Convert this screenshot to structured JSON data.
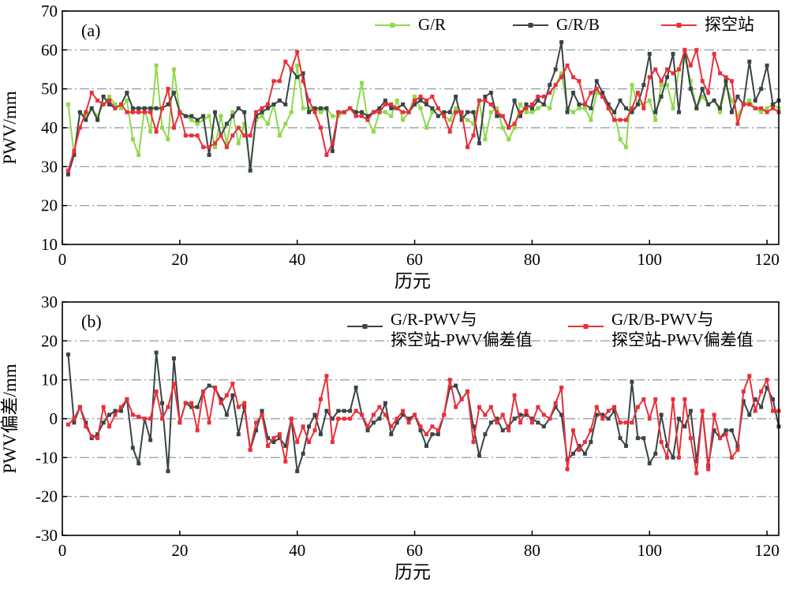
{
  "chart_data": [
    {
      "panel_label": "(a)",
      "type": "line",
      "xlabel": "历元",
      "ylabel": "PWV/mm",
      "xlim": [
        0,
        122
      ],
      "ylim": [
        10,
        70
      ],
      "xticks": [
        0,
        20,
        40,
        60,
        80,
        100,
        120
      ],
      "yticks": [
        10,
        20,
        30,
        40,
        50,
        60,
        70
      ],
      "grid": "horizontal dash-dot",
      "legend_position": "top-right",
      "x": [
        1,
        2,
        3,
        4,
        5,
        6,
        7,
        8,
        9,
        10,
        11,
        12,
        13,
        14,
        15,
        16,
        17,
        18,
        19,
        20,
        21,
        22,
        23,
        24,
        25,
        26,
        27,
        28,
        29,
        30,
        31,
        32,
        33,
        34,
        35,
        36,
        37,
        38,
        39,
        40,
        41,
        42,
        43,
        44,
        45,
        46,
        47,
        48,
        49,
        50,
        51,
        52,
        53,
        54,
        55,
        56,
        57,
        58,
        59,
        60,
        61,
        62,
        63,
        64,
        65,
        66,
        67,
        68,
        69,
        70,
        71,
        72,
        73,
        74,
        75,
        76,
        77,
        78,
        79,
        80,
        81,
        82,
        83,
        84,
        85,
        86,
        87,
        88,
        89,
        90,
        91,
        92,
        93,
        94,
        95,
        96,
        97,
        98,
        99,
        100,
        101,
        102,
        103,
        104,
        105,
        106,
        107,
        108,
        109,
        110,
        111,
        112,
        113,
        114,
        115,
        116,
        117,
        118,
        119,
        120,
        121,
        122
      ],
      "series": [
        {
          "name": "G/R",
          "color": "#8fd94a",
          "marker": "square",
          "values": [
            46,
            33,
            44,
            43,
            45,
            43,
            46,
            48,
            46,
            45,
            47,
            37,
            33,
            45,
            39,
            56,
            40,
            37,
            55,
            44,
            43,
            42,
            41,
            42,
            43,
            35,
            43,
            36,
            44,
            36,
            41,
            30,
            42,
            43,
            41,
            46,
            38,
            41,
            44,
            56,
            45,
            45,
            45,
            44,
            45,
            43,
            43,
            44,
            45,
            44,
            51.5,
            42,
            39,
            44,
            44,
            43,
            47,
            42,
            44,
            48,
            45,
            40,
            44,
            45,
            43,
            42,
            45,
            43,
            42,
            41,
            47,
            37,
            44,
            45,
            40,
            37,
            40,
            46,
            44,
            44,
            45,
            46,
            45,
            51,
            54,
            45,
            44,
            45,
            45,
            42,
            49,
            48,
            45,
            44,
            37,
            35,
            51,
            46,
            46,
            47,
            42,
            51,
            51,
            45,
            55,
            58,
            52,
            45,
            48,
            46,
            47,
            44,
            51,
            47,
            43,
            46,
            47,
            45,
            44,
            45,
            46,
            45
          ]
        },
        {
          "name": "G/R/B",
          "color": "#3a4447",
          "marker": "square",
          "values": [
            28,
            33,
            44,
            42,
            45,
            42,
            48,
            46,
            45,
            46,
            49,
            45,
            45,
            45,
            45,
            45,
            45,
            46,
            49,
            44,
            43,
            43,
            42,
            43,
            33,
            44,
            38,
            41,
            43,
            45,
            44,
            29,
            43,
            44,
            45,
            46,
            47,
            46,
            55,
            53,
            54,
            44,
            45,
            45,
            45,
            34,
            44,
            44,
            45,
            44,
            44,
            43,
            44,
            45,
            47,
            45,
            45,
            46,
            44,
            46,
            47,
            46,
            45,
            43,
            44,
            44,
            48,
            42,
            44,
            44,
            36,
            48,
            49,
            43,
            43,
            40,
            47,
            43,
            46,
            45,
            47,
            46,
            51,
            55,
            62,
            44,
            49,
            46,
            46,
            45,
            52,
            49,
            46,
            44,
            47,
            45,
            44,
            46,
            51,
            59,
            44,
            48,
            53,
            59,
            44,
            60,
            50,
            45,
            50,
            46,
            47,
            45,
            52,
            44,
            48,
            46,
            57,
            47,
            50,
            56,
            46,
            47
          ]
        },
        {
          "name": "探空站",
          "color": "#e8303a",
          "marker": "square",
          "values": [
            29,
            34,
            40,
            44,
            49,
            47,
            46,
            47,
            45,
            46,
            44,
            44,
            44,
            44,
            44,
            39,
            45,
            50,
            40,
            44,
            38,
            38,
            38,
            35,
            35,
            36,
            38,
            35,
            38,
            40,
            38,
            38,
            44,
            45,
            46,
            52,
            52,
            57,
            55,
            59.5,
            52,
            47,
            44,
            40,
            33,
            36,
            44,
            44,
            45,
            43,
            43,
            42,
            44,
            44,
            46,
            46,
            45,
            44,
            44,
            47,
            48,
            47,
            48,
            45,
            43,
            39,
            44,
            44,
            35,
            38,
            47,
            47,
            46,
            44,
            43,
            40,
            41,
            44,
            45,
            46,
            48,
            48,
            49,
            51,
            53,
            56,
            53,
            52,
            46,
            49,
            50,
            48,
            45,
            42,
            42,
            42,
            45,
            49,
            45,
            53,
            55,
            52,
            55,
            54,
            55,
            60,
            56,
            60,
            52,
            49,
            59,
            54,
            53,
            52,
            41,
            46,
            46,
            45,
            45,
            44,
            45,
            44
          ]
        }
      ]
    },
    {
      "panel_label": "(b)",
      "type": "line",
      "xlabel": "历元",
      "ylabel": "PWV偏差/mm",
      "xlim": [
        0,
        122
      ],
      "ylim": [
        -30,
        30
      ],
      "xticks": [
        0,
        20,
        40,
        60,
        80,
        100,
        120
      ],
      "yticks": [
        -30,
        -20,
        -10,
        0,
        10,
        20,
        30
      ],
      "grid": "horizontal dash-dot",
      "legend_position": "top-right",
      "x": [
        1,
        2,
        3,
        4,
        5,
        6,
        7,
        8,
        9,
        10,
        11,
        12,
        13,
        14,
        15,
        16,
        17,
        18,
        19,
        20,
        21,
        22,
        23,
        24,
        25,
        26,
        27,
        28,
        29,
        30,
        31,
        32,
        33,
        34,
        35,
        36,
        37,
        38,
        39,
        40,
        41,
        42,
        43,
        44,
        45,
        46,
        47,
        48,
        49,
        50,
        51,
        52,
        53,
        54,
        55,
        56,
        57,
        58,
        59,
        60,
        61,
        62,
        63,
        64,
        65,
        66,
        67,
        68,
        69,
        70,
        71,
        72,
        73,
        74,
        75,
        76,
        77,
        78,
        79,
        80,
        81,
        82,
        83,
        84,
        85,
        86,
        87,
        88,
        89,
        90,
        91,
        92,
        93,
        94,
        95,
        96,
        97,
        98,
        99,
        100,
        101,
        102,
        103,
        104,
        105,
        106,
        107,
        108,
        109,
        110,
        111,
        112,
        113,
        114,
        115,
        116,
        117,
        118,
        119,
        120,
        121,
        122
      ],
      "series": [
        {
          "name": "G/R-PWV与探空站-PWV偏差值",
          "color": "#3a4447",
          "marker": "square",
          "values": [
            16.5,
            -1,
            3,
            -1,
            -5,
            -4,
            -1,
            1,
            2,
            2,
            5,
            -7.5,
            -11.5,
            0,
            -5.5,
            17,
            4,
            -13.5,
            15.5,
            -1,
            4,
            3,
            3,
            7,
            8.5,
            8,
            5,
            1,
            6,
            -4,
            3,
            -8,
            -3,
            2,
            -5,
            -6,
            -5,
            -7,
            0,
            -13.5,
            -9,
            -2,
            1,
            -4,
            2,
            0,
            2,
            2,
            2,
            8,
            1,
            -3,
            -1,
            0,
            4,
            -4,
            -1,
            1,
            0,
            1,
            -3,
            -7,
            -4,
            -4,
            1,
            8,
            8.5,
            5,
            7,
            -2,
            -9.5,
            -4,
            -1,
            0,
            -3,
            -2,
            0,
            1,
            1,
            0,
            -1,
            -2,
            0,
            3,
            1,
            -10.5,
            -9,
            -7,
            -9,
            -6,
            1,
            1,
            0,
            2,
            -5,
            -7,
            9.5,
            -5,
            -5,
            -11.5,
            -9,
            1,
            -7,
            -10,
            0,
            -2,
            2,
            -11,
            2,
            -12,
            -3,
            -5,
            -3,
            -3,
            -7,
            4.5,
            1,
            5,
            3,
            8,
            5,
            -2
          ]
        },
        {
          "name": "G/R/B-PWV与探空站-PWV偏差值",
          "color": "#e8303a",
          "marker": "square",
          "values": [
            -1.5,
            0,
            3,
            -2,
            -4.5,
            -5,
            3,
            -2,
            1,
            3,
            5,
            1,
            0.5,
            0,
            0,
            7,
            0,
            3,
            9,
            -1,
            4,
            4,
            -3,
            7,
            -1,
            8,
            4,
            6,
            9,
            3,
            4,
            -8,
            -1,
            1,
            -7,
            -5,
            -4,
            -11,
            0,
            -6,
            -2,
            -6,
            -3,
            5,
            11,
            -6,
            0,
            0,
            0,
            2,
            1,
            -2,
            1,
            3,
            1,
            -2,
            0,
            2,
            -1,
            1,
            -2,
            -4,
            -2,
            -3,
            1,
            10,
            3,
            5,
            7,
            -6,
            3,
            1,
            3,
            -1,
            1,
            -3,
            6,
            -1,
            2,
            -1,
            3,
            1,
            0,
            4,
            8,
            -13,
            -3,
            -8,
            -6,
            -3,
            3,
            0,
            2,
            3,
            -1,
            -1,
            -1,
            3,
            5,
            0,
            5,
            -6,
            -10,
            5,
            -10,
            5,
            -5,
            -14,
            2,
            -13,
            1,
            -5,
            -4,
            -10,
            -8,
            7,
            11,
            2,
            7,
            10,
            2,
            2
          ]
        }
      ]
    }
  ]
}
